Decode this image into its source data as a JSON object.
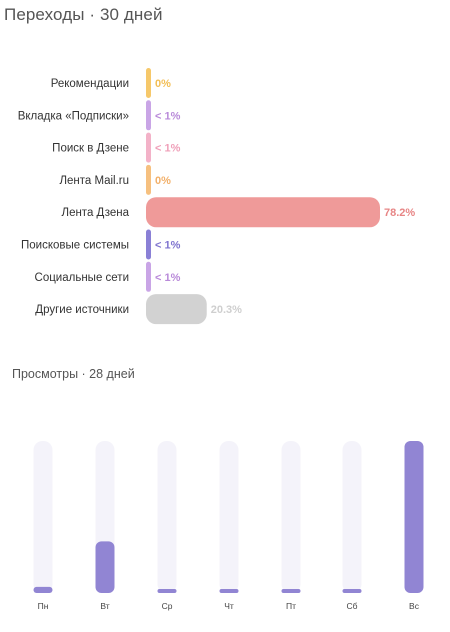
{
  "referrals": {
    "title": "Переходы · 30 дней"
  },
  "views": {
    "title": "Просмотры · 28 дней"
  },
  "chart_data": [
    {
      "type": "bar",
      "orientation": "horizontal",
      "title": "Переходы · 30 дней",
      "categories": [
        "Рекомендации",
        "Вкладка «Подписки»",
        "Поиск в Дзене",
        "Лента Mail.ru",
        "Лента Дзена",
        "Поисковые системы",
        "Социальные сети",
        "Другие источники"
      ],
      "values": [
        0,
        0.5,
        0.5,
        0,
        78.2,
        0.5,
        0.5,
        20.3
      ],
      "value_labels": [
        "0%",
        "< 1%",
        "< 1%",
        "0%",
        "78.2%",
        "< 1%",
        "< 1%",
        "20.3%"
      ],
      "colors": [
        "#f6c86a",
        "#c9a5e6",
        "#f3b2c8",
        "#f6c07f",
        "#ef9a99",
        "#8a80d6",
        "#c9a5e6",
        "#d2d2d2"
      ],
      "label_colors": [
        "#f2be55",
        "#b98ad9",
        "#efa0b9",
        "#f2b06a",
        "#e78585",
        "#7f74cf",
        "#b98ad9",
        "#cfcfcf"
      ],
      "xlim": [
        0,
        100
      ]
    },
    {
      "type": "bar",
      "title": "Просмотры · 28 дней",
      "categories": [
        "Пн",
        "Вт",
        "Ср",
        "Чт",
        "Пт",
        "Сб",
        "Вс"
      ],
      "values": [
        4,
        34,
        2,
        2,
        2,
        2,
        100
      ],
      "ylim": [
        0,
        100
      ],
      "bar_color": "#9185d3",
      "track_color": "#f4f3fa"
    }
  ]
}
